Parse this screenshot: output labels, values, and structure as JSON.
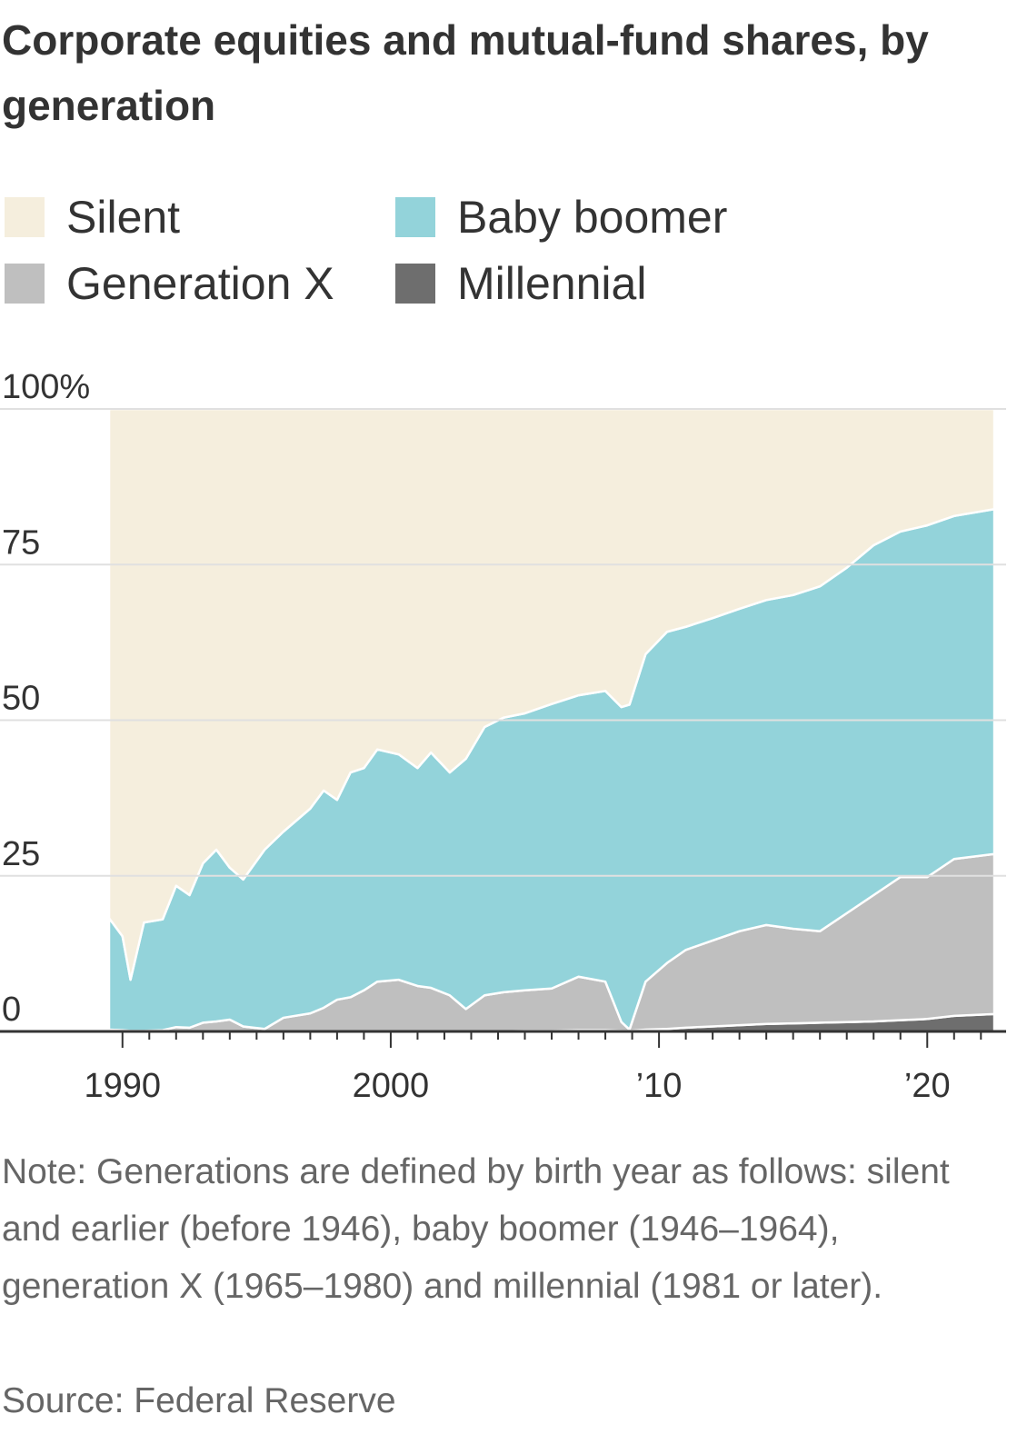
{
  "chart_data": {
    "type": "stacked_area",
    "title": "Corporate equities and mutual-fund shares, by generation",
    "note": "Note: Generations are defined by birth year as follows: silent and earlier (before 1946), baby boomer (1946–1964), generation X (1965–1980) and millennial (1981 or later).",
    "source": "Source: Federal Reserve",
    "x": [
      1989.5,
      1990,
      1990.3,
      1990.8,
      1991.5,
      1992,
      1992.5,
      1993,
      1993.5,
      1994,
      1994.5,
      1995.3,
      1996,
      1997,
      1997.5,
      1998,
      1998.5,
      1999,
      1999.5,
      2000.3,
      2001,
      2001.5,
      2002.2,
      2002.8,
      2003.5,
      2004.2,
      2005,
      2006,
      2007,
      2008,
      2008.6,
      2008.9,
      2009.5,
      2010.3,
      2011,
      2012,
      2013,
      2014,
      2015,
      2016,
      2017,
      2018,
      2019,
      2020,
      2021,
      2022.5
    ],
    "series": [
      {
        "name": "Silent",
        "color": "#f5eedd",
        "values": [
          81.8,
          84.7,
          91.7,
          82.5,
          82,
          76.6,
          78.1,
          73,
          70.8,
          73.7,
          75.6,
          70.8,
          67.9,
          64.2,
          61.3,
          62.8,
          58.4,
          57.7,
          54.7,
          55.5,
          57.7,
          55.2,
          58.4,
          56.2,
          51.1,
          49.6,
          48.9,
          47.4,
          46,
          45.3,
          47.9,
          47.5,
          39.4,
          35.8,
          35,
          33.6,
          32.1,
          30.7,
          29.9,
          28.5,
          25.5,
          21.9,
          19.7,
          18.7,
          17.2,
          16.1
        ]
      },
      {
        "name": "Baby boomer",
        "color": "#93d3da",
        "values": [
          17.9,
          15.1,
          8.2,
          17.4,
          17.8,
          22.7,
          21.3,
          25.6,
          27.6,
          24.4,
          23.6,
          28.8,
          29.9,
          32.9,
          34.9,
          32.1,
          36.1,
          35.7,
          37.3,
          36.2,
          35,
          37.8,
          35.8,
          40.2,
          43.1,
          44.1,
          44.5,
          45.7,
          45.2,
          46.7,
          50.6,
          52.2,
          52.6,
          53.2,
          51.9,
          51.8,
          51.8,
          52.2,
          53.6,
          55.4,
          55.5,
          56.2,
          55.5,
          56.5,
          55.1,
          55.4
        ]
      },
      {
        "name": "Generation X",
        "color": "#bfbfbf",
        "values": [
          0.3,
          0.2,
          0.1,
          0.1,
          0.2,
          0.7,
          0.6,
          1.4,
          1.6,
          1.9,
          0.8,
          0.4,
          2.2,
          2.9,
          3.8,
          5.1,
          5.5,
          6.6,
          8.0,
          8.3,
          7.3,
          7.0,
          5.8,
          3.6,
          5.8,
          6.3,
          6.5,
          6.8,
          8.6,
          7.8,
          1.4,
          0.2,
          7.7,
          10.6,
          12.5,
          13.8,
          15.1,
          15.9,
          15.2,
          14.7,
          17.5,
          20.3,
          23,
          22.8,
          25.2,
          25.7
        ]
      },
      {
        "name": "Millennial",
        "color": "#6e6e6e",
        "values": [
          0,
          0,
          0,
          0,
          0,
          0,
          0,
          0,
          0,
          0,
          0,
          0,
          0,
          0,
          0,
          0,
          0,
          0,
          0,
          0,
          0,
          0,
          0,
          0,
          0,
          0,
          0.1,
          0.1,
          0.2,
          0.2,
          0.1,
          0.1,
          0.3,
          0.4,
          0.6,
          0.8,
          1.0,
          1.2,
          1.3,
          1.4,
          1.5,
          1.6,
          1.8,
          2.0,
          2.5,
          2.8
        ]
      }
    ],
    "xlim": [
      1989.5,
      2022.6
    ],
    "xticks": [
      1990,
      2000,
      {
        "value": 2010,
        "label": "’10"
      },
      {
        "value": 2020,
        "label": "’20"
      }
    ],
    "xminorticks": [
      1991,
      1992,
      1993,
      1994,
      1995,
      1996,
      1997,
      1998,
      1999,
      2001,
      2002,
      2003,
      2004,
      2005,
      2006,
      2007,
      2008,
      2009,
      2011,
      2012,
      2013,
      2014,
      2015,
      2016,
      2017,
      2018,
      2019,
      2021,
      2022
    ],
    "ylim": [
      0,
      100
    ],
    "yticks": [
      0,
      25,
      50,
      75,
      {
        "value": 100,
        "label": "100%"
      }
    ],
    "grid": true
  }
}
